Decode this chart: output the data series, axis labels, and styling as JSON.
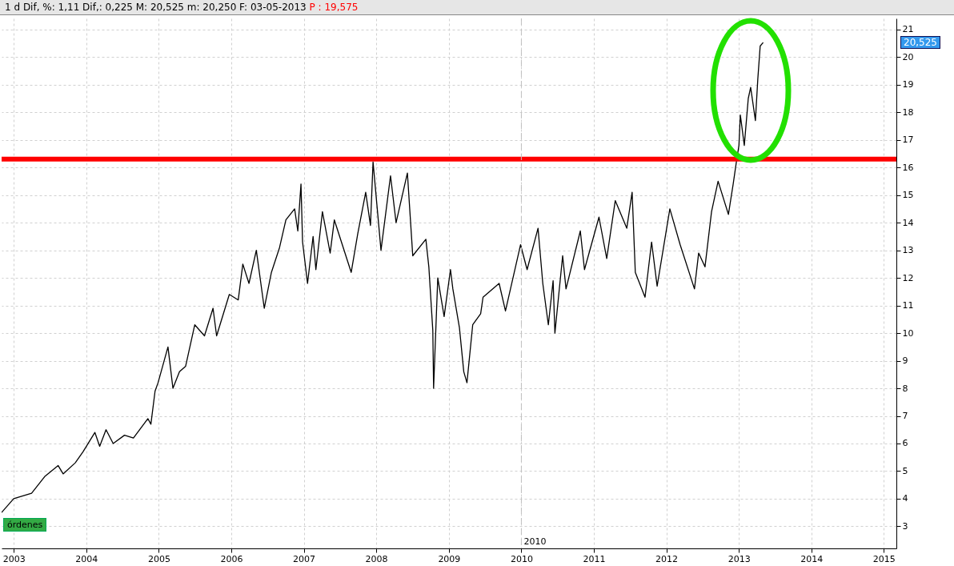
{
  "chart_data": {
    "type": "line",
    "title": "1 d Dif, %: 1,11 Dif,: 0,225 M: 20,525 m: 20,250 F: 03-05-2013",
    "subtitle": "P : 19,575",
    "x": [
      "2002-11-01",
      "2003-01-01",
      "2003-04-01",
      "2003-06-06",
      "2003-08-13",
      "2003-09-07",
      "2003-11-07",
      "2003-12-16",
      "2004-02-14",
      "2004-03-09",
      "2004-04-10",
      "2004-05-16",
      "2004-07-12",
      "2004-08-26",
      "2004-11-07",
      "2004-11-22",
      "2004-12-13",
      "2004-12-28",
      "2005-02-16",
      "2005-03-13",
      "2005-04-15",
      "2005-05-16",
      "2005-07-01",
      "2005-08-19",
      "2005-10-01",
      "2005-10-19",
      "2005-12-22",
      "2006-02-05",
      "2006-02-28",
      "2006-03-31",
      "2006-05-07",
      "2006-06-16",
      "2006-07-22",
      "2006-09-01",
      "2006-10-03",
      "2006-11-16",
      "2006-12-02",
      "2006-12-18",
      "2006-12-26",
      "2007-01-20",
      "2007-02-17",
      "2007-03-03",
      "2007-04-05",
      "2007-05-14",
      "2007-06-04",
      "2007-08-28",
      "2007-09-30",
      "2007-11-09",
      "2007-12-03",
      "2007-12-16",
      "2008-01-25",
      "2008-03-13",
      "2008-04-10",
      "2008-06-06",
      "2008-07-03",
      "2008-09-07",
      "2008-09-22",
      "2008-10-12",
      "2008-10-16",
      "2008-11-06",
      "2008-12-08",
      "2009-01-09",
      "2009-01-21",
      "2009-02-23",
      "2009-03-17",
      "2009-04-02",
      "2009-05-01",
      "2009-06-10",
      "2009-06-22",
      "2009-09-11",
      "2009-10-13",
      "2009-12-28",
      "2010-01-30",
      "2010-03-26",
      "2010-04-19",
      "2010-05-17",
      "2010-06-10",
      "2010-06-19",
      "2010-07-28",
      "2010-08-14",
      "2010-10-25",
      "2010-11-15",
      "2011-01-27",
      "2011-03-07",
      "2011-04-19",
      "2011-06-16",
      "2011-07-13",
      "2011-07-29",
      "2011-09-16",
      "2011-10-19",
      "2011-11-16",
      "2012-01-19",
      "2012-03-11",
      "2012-05-22",
      "2012-06-12",
      "2012-07-14",
      "2012-08-16",
      "2012-09-18",
      "2012-11-09",
      "2012-12-03",
      "2012-12-19",
      "2013-01-01",
      "2013-01-08",
      "2013-01-28",
      "2013-02-17",
      "2013-03-01",
      "2013-03-25",
      "2013-04-06",
      "2013-04-18",
      "2013-05-03"
    ],
    "series": [
      {
        "color": "#000000",
        "values": [
          3.5,
          4.0,
          4.2,
          4.8,
          5.2,
          4.9,
          5.3,
          5.7,
          6.4,
          5.9,
          6.5,
          6.0,
          6.3,
          6.2,
          6.9,
          6.7,
          7.9,
          8.2,
          9.5,
          8.0,
          8.6,
          8.8,
          10.3,
          9.9,
          10.9,
          9.9,
          11.4,
          11.2,
          12.5,
          11.8,
          13.0,
          10.9,
          12.2,
          13.1,
          14.1,
          14.5,
          13.7,
          15.4,
          13.3,
          11.8,
          13.5,
          12.3,
          14.4,
          12.9,
          14.1,
          12.2,
          13.6,
          15.1,
          13.9,
          16.2,
          13.0,
          15.7,
          14.0,
          15.8,
          12.8,
          13.4,
          12.4,
          10.1,
          8.0,
          12.0,
          10.6,
          12.3,
          11.6,
          10.2,
          8.6,
          8.2,
          10.3,
          10.7,
          11.3,
          11.8,
          10.8,
          13.2,
          12.3,
          13.8,
          11.8,
          10.3,
          11.9,
          10.0,
          12.8,
          11.6,
          13.7,
          12.3,
          14.2,
          12.7,
          14.8,
          13.8,
          15.1,
          12.2,
          11.3,
          13.3,
          11.7,
          14.5,
          13.2,
          11.6,
          12.9,
          12.4,
          14.4,
          15.5,
          14.3,
          15.4,
          16.2,
          16.8,
          17.9,
          16.8,
          18.5,
          18.9,
          17.7,
          19.2,
          20.4,
          20.525
        ]
      }
    ],
    "xlim": [
      "2002-11-01",
      "2015-03-05"
    ],
    "xticks": [
      "2003",
      "2004",
      "2005",
      "2006",
      "2007",
      "2008",
      "2009",
      "2010",
      "2011",
      "2012",
      "2013",
      "2014",
      "2015"
    ],
    "ylim": [
      2.2,
      21.4
    ],
    "yticks": [
      3,
      4,
      5,
      6,
      7,
      8,
      9,
      10,
      11,
      12,
      13,
      14,
      15,
      16,
      17,
      18,
      19,
      20,
      21
    ],
    "grid": true,
    "ref_lines": [
      {
        "axis": "y",
        "value": 16.3,
        "color": "#ff0000"
      },
      {
        "axis": "x",
        "value": "2010",
        "label": "2010",
        "color": "#c0c0c0",
        "line_style": "dashed"
      }
    ],
    "annotations": [
      "20,525",
      "órdenes"
    ]
  }
}
